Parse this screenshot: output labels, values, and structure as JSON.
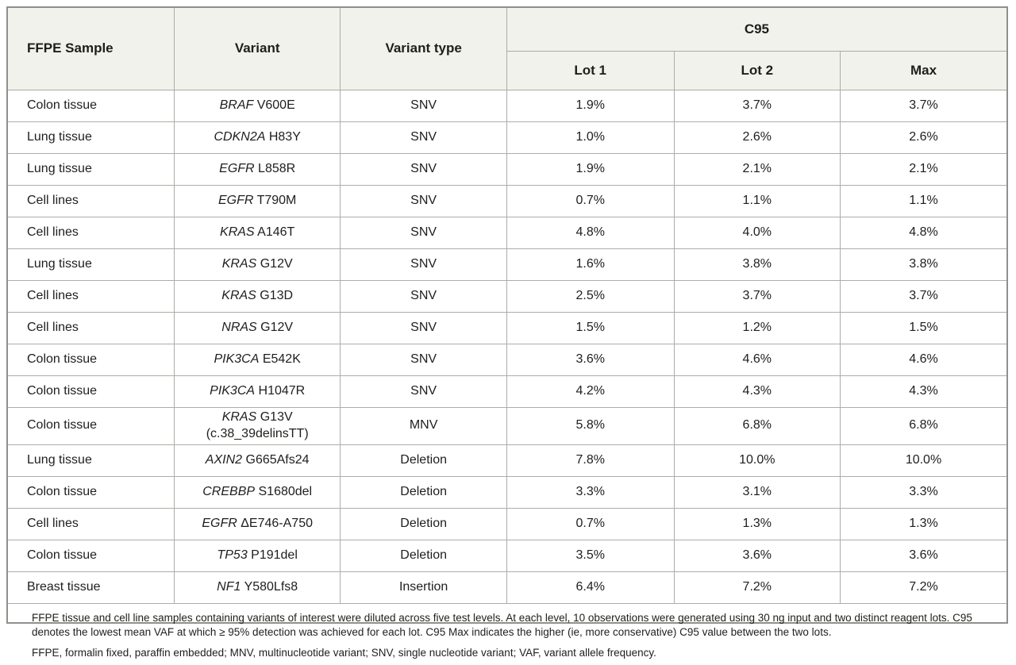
{
  "palette": {
    "header_bg": "#f2f2ec",
    "grid_line": "#acaca8",
    "outer_border": "#8f8f8b",
    "text": "#1e1e1c",
    "body_bg": "#ffffff"
  },
  "table": {
    "column_headers": {
      "ffpe_sample": "FFPE Sample",
      "variant": "Variant",
      "variant_type": "Variant type",
      "c95_group": "C95",
      "lot1": "Lot 1",
      "lot2": "Lot 2",
      "max": "Max"
    },
    "rows": [
      {
        "sample": "Colon tissue",
        "gene": "BRAF",
        "mutation": "V600E",
        "note": "",
        "type": "SNV",
        "lot1": "1.9%",
        "lot2": "3.7%",
        "max": "3.7%"
      },
      {
        "sample": "Lung tissue",
        "gene": "CDKN2A",
        "mutation": "H83Y",
        "note": "",
        "type": "SNV",
        "lot1": "1.0%",
        "lot2": "2.6%",
        "max": "2.6%"
      },
      {
        "sample": "Lung tissue",
        "gene": "EGFR",
        "mutation": "L858R",
        "note": "",
        "type": "SNV",
        "lot1": "1.9%",
        "lot2": "2.1%",
        "max": "2.1%"
      },
      {
        "sample": "Cell lines",
        "gene": "EGFR",
        "mutation": "T790M",
        "note": "",
        "type": "SNV",
        "lot1": "0.7%",
        "lot2": "1.1%",
        "max": "1.1%"
      },
      {
        "sample": "Cell lines",
        "gene": "KRAS",
        "mutation": "A146T",
        "note": "",
        "type": "SNV",
        "lot1": "4.8%",
        "lot2": "4.0%",
        "max": "4.8%"
      },
      {
        "sample": "Lung tissue",
        "gene": "KRAS",
        "mutation": "G12V",
        "note": "",
        "type": "SNV",
        "lot1": "1.6%",
        "lot2": "3.8%",
        "max": "3.8%"
      },
      {
        "sample": "Cell lines",
        "gene": "KRAS",
        "mutation": "G13D",
        "note": "",
        "type": "SNV",
        "lot1": "2.5%",
        "lot2": "3.7%",
        "max": "3.7%"
      },
      {
        "sample": "Cell lines",
        "gene": "NRAS",
        "mutation": "G12V",
        "note": "",
        "type": "SNV",
        "lot1": "1.5%",
        "lot2": "1.2%",
        "max": "1.5%"
      },
      {
        "sample": "Colon tissue",
        "gene": "PIK3CA",
        "mutation": "E542K",
        "note": "",
        "type": "SNV",
        "lot1": "3.6%",
        "lot2": "4.6%",
        "max": "4.6%"
      },
      {
        "sample": "Colon tissue",
        "gene": "PIK3CA",
        "mutation": "H1047R",
        "note": "",
        "type": "SNV",
        "lot1": "4.2%",
        "lot2": "4.3%",
        "max": "4.3%"
      },
      {
        "sample": "Colon tissue",
        "gene": "KRAS",
        "mutation": "G13V",
        "note": "(c.38_39delinsTT)",
        "type": "MNV",
        "lot1": "5.8%",
        "lot2": "6.8%",
        "max": "6.8%"
      },
      {
        "sample": "Lung tissue",
        "gene": "AXIN2",
        "mutation": "G665Afs24",
        "note": "",
        "type": "Deletion",
        "lot1": "7.8%",
        "lot2": "10.0%",
        "max": "10.0%"
      },
      {
        "sample": "Colon tissue",
        "gene": "CREBBP",
        "mutation": "S1680del",
        "note": "",
        "type": "Deletion",
        "lot1": "3.3%",
        "lot2": "3.1%",
        "max": "3.3%"
      },
      {
        "sample": "Cell lines",
        "gene": "EGFR",
        "mutation": "ΔE746-A750",
        "note": "",
        "type": "Deletion",
        "lot1": "0.7%",
        "lot2": "1.3%",
        "max": "1.3%"
      },
      {
        "sample": "Colon tissue",
        "gene": "TP53",
        "mutation": "P191del",
        "note": "",
        "type": "Deletion",
        "lot1": "3.5%",
        "lot2": "3.6%",
        "max": "3.6%"
      },
      {
        "sample": "Breast tissue",
        "gene": "NF1",
        "mutation": "Y580Lfs8",
        "note": "",
        "type": "Insertion",
        "lot1": "6.4%",
        "lot2": "7.2%",
        "max": "7.2%"
      }
    ],
    "footnotes": [
      "FFPE tissue and cell line samples containing variants of interest were diluted across five test levels. At each level, 10 observations were generated using 30 ng input and two distinct reagent lots. C95 denotes the lowest mean VAF at which ≥ 95% detection was achieved for each lot. C95 Max indicates the higher (ie, more conservative) C95 value between the two lots.",
      "FFPE, formalin fixed, paraffin embedded; MNV, multinucleotide variant; SNV, single nucleotide variant; VAF, variant allele frequency."
    ]
  }
}
